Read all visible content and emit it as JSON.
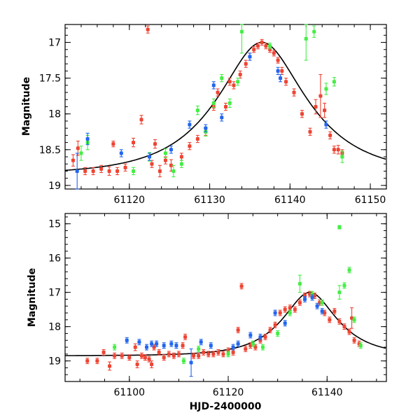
{
  "chart_data": [
    {
      "type": "scatter",
      "panel": "top",
      "title": "",
      "xlabel": "",
      "ylabel": "Magnitude",
      "xlim": [
        61112,
        61152
      ],
      "ylim": [
        19.05,
        16.75
      ],
      "y_inverted": true,
      "grid": false,
      "xticks": [
        "61120",
        "61130",
        "61140",
        "61150"
      ],
      "yticks": [
        "17",
        "17.5",
        "18",
        "18.5",
        "19"
      ],
      "model_curve": {
        "label": "fit",
        "peak_time": 61136.5,
        "peak_mag": 17.0,
        "baseline_mag": 18.85
      },
      "series": [
        {
          "name": "red",
          "color": "#ee4433",
          "points": [
            [
              61113.0,
              18.65,
              0.08
            ],
            [
              61113.6,
              18.48,
              0.1
            ],
            [
              61114.5,
              18.8,
              0.05
            ],
            [
              61115.5,
              18.8,
              0.05
            ],
            [
              61116.5,
              18.77,
              0.05
            ],
            [
              61117.5,
              18.8,
              0.06
            ],
            [
              61118.0,
              18.42,
              0.04
            ],
            [
              61118.5,
              18.8,
              0.05
            ],
            [
              61119.5,
              18.75,
              0.05
            ],
            [
              61120.5,
              18.4,
              0.06
            ],
            [
              61121.5,
              18.08,
              0.06
            ],
            [
              61122.3,
              16.82,
              0.05
            ],
            [
              61122.8,
              18.7,
              0.05
            ],
            [
              61123.2,
              18.42,
              0.06
            ],
            [
              61123.8,
              18.8,
              0.08
            ],
            [
              61124.5,
              18.65,
              0.05
            ],
            [
              61125.2,
              18.72,
              0.08
            ],
            [
              61126.5,
              18.6,
              0.05
            ],
            [
              61127.5,
              18.45,
              0.05
            ],
            [
              61128.5,
              18.35,
              0.05
            ],
            [
              61129.5,
              18.25,
              0.05
            ],
            [
              61130.5,
              17.9,
              0.05
            ],
            [
              61131.0,
              17.7,
              0.05
            ],
            [
              61132.0,
              17.9,
              0.05
            ],
            [
              61132.5,
              17.55,
              0.05
            ],
            [
              61133.0,
              17.6,
              0.05
            ],
            [
              61133.8,
              17.45,
              0.05
            ],
            [
              61134.5,
              17.3,
              0.05
            ],
            [
              61135.0,
              17.2,
              0.05
            ],
            [
              61135.5,
              17.1,
              0.04
            ],
            [
              61136.0,
              17.05,
              0.04
            ],
            [
              61136.5,
              17.0,
              0.04
            ],
            [
              61137.0,
              17.05,
              0.04
            ],
            [
              61137.5,
              17.1,
              0.04
            ],
            [
              61138.0,
              17.15,
              0.04
            ],
            [
              61138.5,
              17.25,
              0.04
            ],
            [
              61139.0,
              17.4,
              0.05
            ],
            [
              61139.5,
              17.55,
              0.05
            ],
            [
              61140.5,
              17.7,
              0.05
            ],
            [
              61141.5,
              18.0,
              0.05
            ],
            [
              61142.5,
              18.25,
              0.05
            ],
            [
              61143.2,
              17.9,
              0.1
            ],
            [
              61143.8,
              17.75,
              0.3
            ],
            [
              61144.3,
              17.95,
              0.1
            ],
            [
              61145.0,
              18.3,
              0.05
            ],
            [
              61145.5,
              18.5,
              0.05
            ],
            [
              61146.0,
              18.5,
              0.06
            ],
            [
              61146.5,
              18.55,
              0.05
            ]
          ]
        },
        {
          "name": "green",
          "color": "#44ee44",
          "points": [
            [
              61114.0,
              18.55,
              0.1
            ],
            [
              61114.8,
              18.4,
              0.1
            ],
            [
              61120.5,
              18.8,
              0.05
            ],
            [
              61122.5,
              18.6,
              0.06
            ],
            [
              61124.5,
              18.55,
              0.06
            ],
            [
              61125.5,
              18.8,
              0.08
            ],
            [
              61126.5,
              18.7,
              0.05
            ],
            [
              61128.5,
              17.95,
              0.06
            ],
            [
              61129.5,
              18.25,
              0.06
            ],
            [
              61130.5,
              17.85,
              0.06
            ],
            [
              61131.5,
              17.5,
              0.05
            ],
            [
              61132.5,
              17.85,
              0.06
            ],
            [
              61133.5,
              17.55,
              0.05
            ],
            [
              61134.0,
              16.85,
              0.3
            ],
            [
              61137.5,
              17.05,
              0.04
            ],
            [
              61142.0,
              16.95,
              0.3
            ],
            [
              61143.0,
              16.85,
              0.08
            ],
            [
              61144.5,
              17.65,
              0.08
            ],
            [
              61145.5,
              17.55,
              0.06
            ],
            [
              61146.5,
              18.6,
              0.08
            ]
          ]
        },
        {
          "name": "blue",
          "color": "#2266ee",
          "points": [
            [
              61113.5,
              18.8,
              0.25
            ],
            [
              61114.8,
              18.35,
              0.08
            ],
            [
              61119.0,
              18.55,
              0.05
            ],
            [
              61122.5,
              18.6,
              0.05
            ],
            [
              61125.2,
              18.5,
              0.05
            ],
            [
              61127.5,
              18.15,
              0.05
            ],
            [
              61129.5,
              18.2,
              0.05
            ],
            [
              61130.5,
              17.6,
              0.05
            ],
            [
              61131.5,
              18.05,
              0.05
            ],
            [
              61135.0,
              17.2,
              0.05
            ],
            [
              61138.5,
              17.4,
              0.05
            ],
            [
              61138.8,
              17.5,
              0.05
            ],
            [
              61144.5,
              18.15,
              0.05
            ]
          ]
        }
      ]
    },
    {
      "type": "scatter",
      "panel": "bottom",
      "title": "",
      "xlabel": "HJD-2400000",
      "ylabel": "Magnitude",
      "xlim": [
        61087,
        61152
      ],
      "ylim": [
        19.6,
        14.7
      ],
      "y_inverted": true,
      "grid": false,
      "xticks": [
        "61100",
        "61120",
        "61140"
      ],
      "yticks": [
        "15",
        "16",
        "17",
        "18",
        "19"
      ],
      "model_curve": {
        "label": "fit",
        "peak_time": 61136.5,
        "peak_mag": 17.0,
        "baseline_mag": 18.85
      },
      "series": [
        {
          "name": "red",
          "color": "#ee4433",
          "points": [
            [
              61091.5,
              19.0,
              0.08
            ],
            [
              61093.5,
              19.0,
              0.08
            ],
            [
              61094.8,
              18.75,
              0.08
            ],
            [
              61096.0,
              19.15,
              0.12
            ],
            [
              61097.0,
              18.85,
              0.08
            ],
            [
              61098.5,
              18.85,
              0.08
            ],
            [
              61100.0,
              18.9,
              0.08
            ],
            [
              61101.2,
              18.6,
              0.1
            ],
            [
              61101.6,
              19.1,
              0.1
            ],
            [
              61102.5,
              18.85,
              0.08
            ],
            [
              61103.2,
              18.9,
              0.08
            ],
            [
              61104.0,
              18.95,
              0.08
            ],
            [
              61104.5,
              19.1,
              0.1
            ],
            [
              61105.0,
              18.6,
              0.08
            ],
            [
              61106.0,
              18.75,
              0.08
            ],
            [
              61107.0,
              18.9,
              0.08
            ],
            [
              61108.0,
              18.8,
              0.08
            ],
            [
              61109.0,
              18.85,
              0.08
            ],
            [
              61110.0,
              18.8,
              0.08
            ],
            [
              61110.8,
              18.55,
              0.08
            ],
            [
              61111.3,
              18.3,
              0.08
            ],
            [
              61113.0,
              18.85,
              0.08
            ],
            [
              61114.0,
              18.85,
              0.08
            ],
            [
              61115.0,
              18.75,
              0.08
            ],
            [
              61116.0,
              18.8,
              0.08
            ],
            [
              61117.0,
              18.8,
              0.08
            ],
            [
              61118.0,
              18.75,
              0.08
            ],
            [
              61119.0,
              18.8,
              0.08
            ],
            [
              61120.0,
              18.7,
              0.08
            ],
            [
              61121.0,
              18.75,
              0.08
            ],
            [
              61122.0,
              18.1,
              0.08
            ],
            [
              61122.7,
              16.82,
              0.08
            ],
            [
              61123.5,
              18.65,
              0.08
            ],
            [
              61124.5,
              18.55,
              0.08
            ],
            [
              61125.5,
              18.6,
              0.08
            ],
            [
              61126.5,
              18.4,
              0.08
            ],
            [
              61127.5,
              18.3,
              0.08
            ],
            [
              61128.5,
              18.1,
              0.08
            ],
            [
              61129.5,
              17.95,
              0.08
            ],
            [
              61130.5,
              17.6,
              0.08
            ],
            [
              61131.5,
              17.5,
              0.08
            ],
            [
              61132.5,
              17.45,
              0.08
            ],
            [
              61133.5,
              17.5,
              0.08
            ],
            [
              61134.5,
              17.3,
              0.08
            ],
            [
              61135.5,
              17.1,
              0.08
            ],
            [
              61136.5,
              17.05,
              0.08
            ],
            [
              61137.5,
              17.1,
              0.08
            ],
            [
              61138.5,
              17.3,
              0.08
            ],
            [
              61139.5,
              17.6,
              0.08
            ],
            [
              61140.5,
              17.8,
              0.08
            ],
            [
              61141.5,
              17.55,
              0.08
            ],
            [
              61142.5,
              17.85,
              0.08
            ],
            [
              61143.5,
              18.0,
              0.08
            ],
            [
              61144.5,
              18.15,
              0.08
            ],
            [
              61145.0,
              17.75,
              0.3
            ],
            [
              61145.5,
              18.4,
              0.08
            ],
            [
              61146.5,
              18.5,
              0.08
            ]
          ]
        },
        {
          "name": "green",
          "color": "#44ee44",
          "points": [
            [
              61097.0,
              18.6,
              0.08
            ],
            [
              61111.0,
              19.0,
              0.08
            ],
            [
              61114.0,
              18.65,
              0.08
            ],
            [
              61120.0,
              18.8,
              0.08
            ],
            [
              61125.0,
              18.5,
              0.08
            ],
            [
              61127.0,
              18.6,
              0.08
            ],
            [
              61130.0,
              18.2,
              0.08
            ],
            [
              61132.5,
              17.6,
              0.08
            ],
            [
              61134.5,
              16.75,
              0.25
            ],
            [
              61137.0,
              17.05,
              0.08
            ],
            [
              61139.0,
              17.3,
              0.08
            ],
            [
              61142.5,
              15.1,
              0.05
            ],
            [
              61142.5,
              17.0,
              0.2
            ],
            [
              61143.5,
              16.8,
              0.08
            ],
            [
              61144.5,
              16.35,
              0.08
            ],
            [
              61145.5,
              17.8,
              0.08
            ],
            [
              61146.8,
              18.55,
              0.08
            ]
          ]
        },
        {
          "name": "blue",
          "color": "#2266ee",
          "points": [
            [
              61099.5,
              18.4,
              0.08
            ],
            [
              61102.0,
              18.45,
              0.08
            ],
            [
              61103.5,
              18.6,
              0.08
            ],
            [
              61104.5,
              18.5,
              0.08
            ],
            [
              61105.5,
              18.5,
              0.08
            ],
            [
              61107.0,
              18.55,
              0.08
            ],
            [
              61108.5,
              18.5,
              0.08
            ],
            [
              61109.5,
              18.55,
              0.08
            ],
            [
              61112.5,
              19.05,
              0.4
            ],
            [
              61114.5,
              18.45,
              0.08
            ],
            [
              61116.5,
              18.55,
              0.08
            ],
            [
              61121.0,
              18.6,
              0.08
            ],
            [
              61122.0,
              18.5,
              0.08
            ],
            [
              61124.5,
              18.25,
              0.08
            ],
            [
              61126.5,
              18.3,
              0.08
            ],
            [
              61129.5,
              17.6,
              0.08
            ],
            [
              61131.5,
              17.9,
              0.08
            ],
            [
              61135.5,
              17.2,
              0.08
            ],
            [
              61137.0,
              17.15,
              0.08
            ],
            [
              61138.0,
              17.4,
              0.08
            ],
            [
              61139.0,
              17.55,
              0.08
            ]
          ]
        }
      ]
    }
  ]
}
